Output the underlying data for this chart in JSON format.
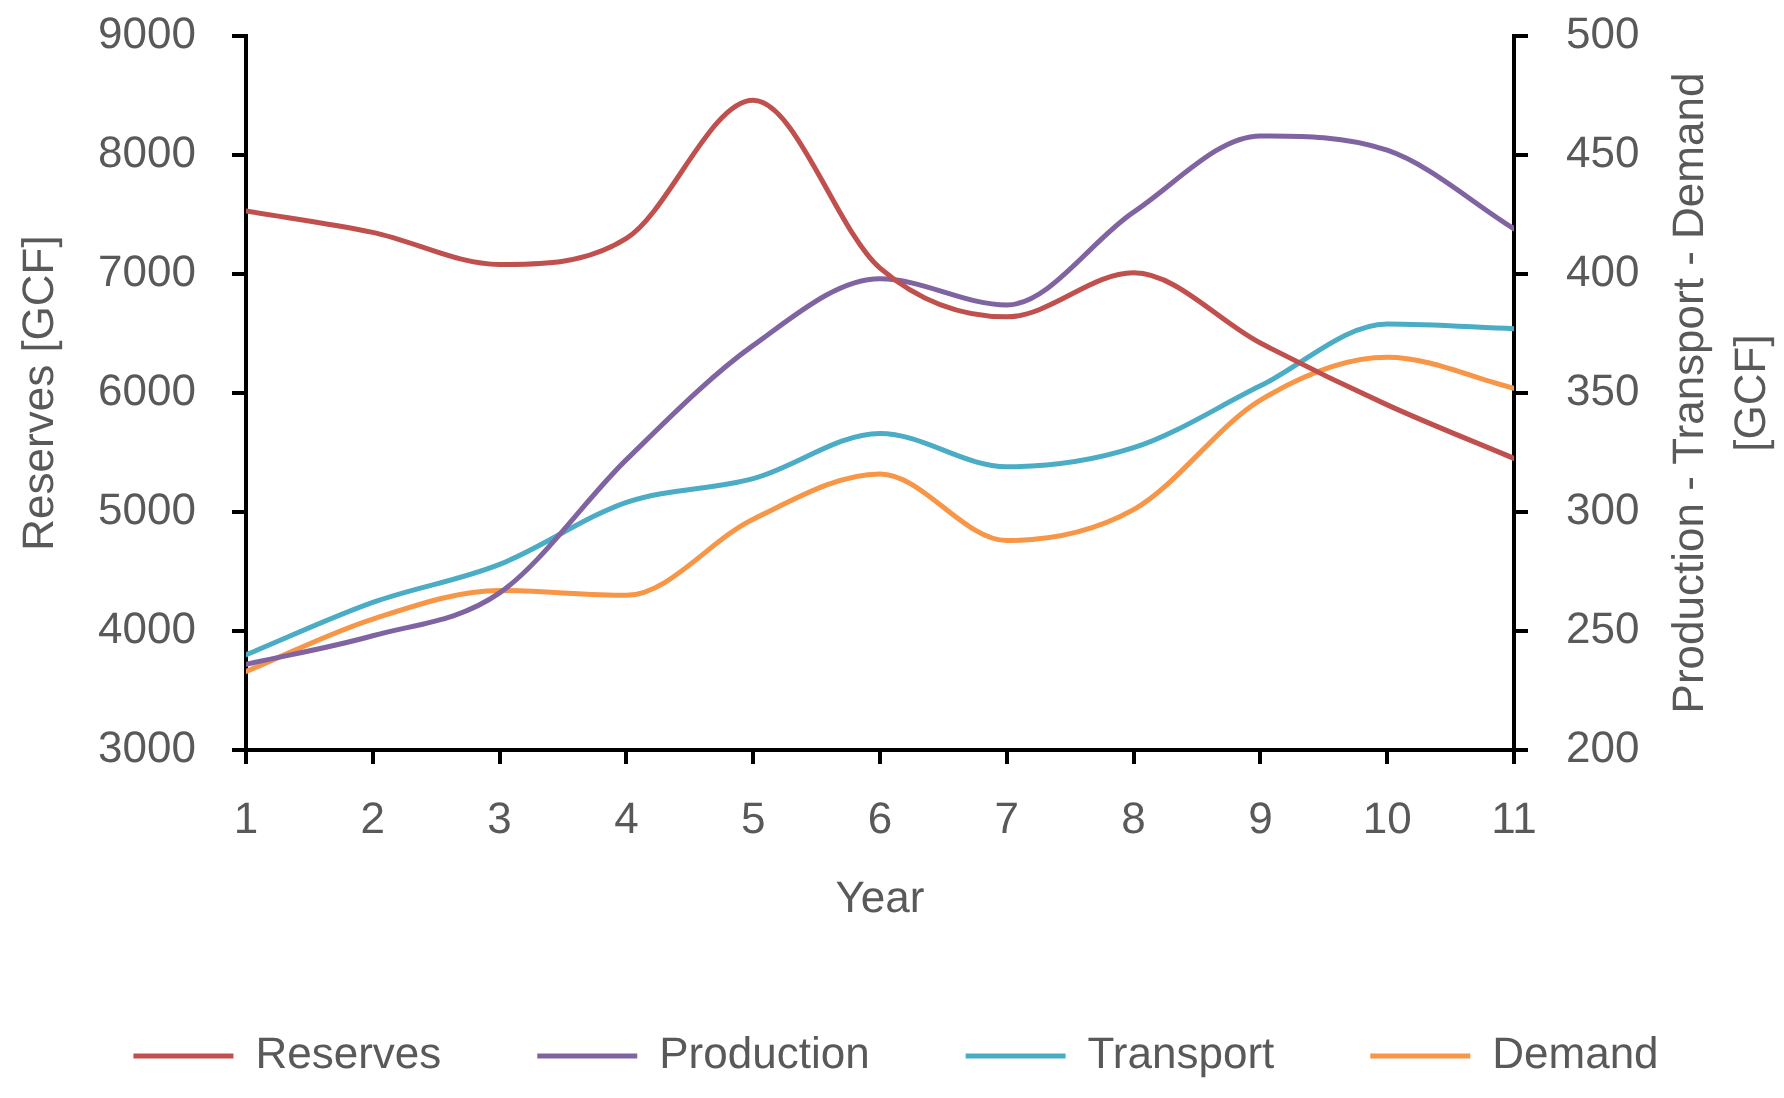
{
  "chart_data": {
    "type": "line",
    "xlabel": "Year",
    "ylabel": "Reserves [GCF]",
    "y2label": "Production - Transport - Demand [GCF]",
    "x": [
      1,
      2,
      3,
      4,
      5,
      6,
      7,
      8,
      9,
      10,
      11
    ],
    "series": [
      {
        "name": "Reserves",
        "color": "#c0504d",
        "values": [
          7530,
          7350,
          7080,
          7300,
          8460,
          7050,
          6640,
          7010,
          6420,
          5900,
          5450
        ]
      },
      {
        "name": "Production",
        "color": "#8064a2",
        "axis": "y2",
        "values": [
          236,
          248,
          266,
          322,
          370,
          398,
          387,
          426,
          458,
          452,
          419
        ]
      },
      {
        "name": "Transport",
        "color": "#4bacc6",
        "axis": "y2",
        "values": [
          240,
          262,
          278,
          304,
          314,
          333,
          319,
          327,
          353,
          379,
          377
        ]
      },
      {
        "name": "Demand",
        "color": "#f79646",
        "axis": "y2",
        "values": [
          233,
          255,
          267,
          265,
          297,
          316,
          288,
          301,
          347,
          365,
          352
        ]
      }
    ],
    "xlim": [
      1,
      11
    ],
    "xticks": [
      1,
      2,
      3,
      4,
      5,
      6,
      7,
      8,
      9,
      10,
      11
    ],
    "ylim": [
      3000,
      9000
    ],
    "yticks": [
      3000,
      4000,
      5000,
      6000,
      7000,
      8000,
      9000
    ],
    "y2lim": [
      200,
      500
    ],
    "y2ticks": [
      200,
      250,
      300,
      350,
      400,
      450,
      500
    ],
    "grid": false,
    "legend": "bottom"
  }
}
